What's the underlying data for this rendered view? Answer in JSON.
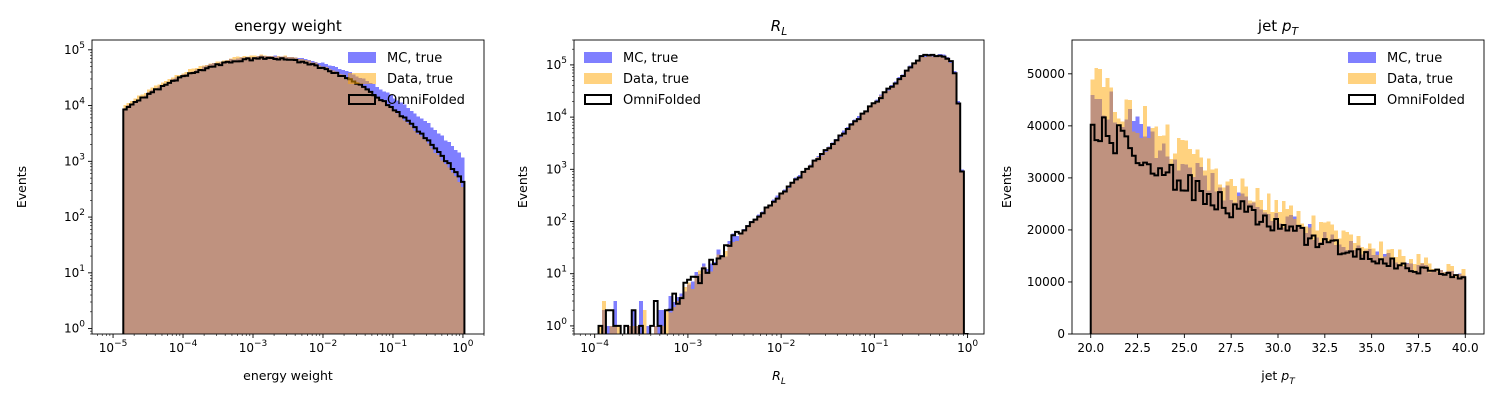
{
  "chart_data": [
    {
      "type": "histogram",
      "title": "energy weight",
      "xlabel": "energy weight",
      "ylabel": "Events",
      "xscale": "log",
      "yscale": "log",
      "xlim": [
        5e-06,
        2
      ],
      "ylim": [
        0.8,
        150000.0
      ],
      "xticks": [
        {
          "v": 1e-05,
          "b": "10",
          "e": "−5"
        },
        {
          "v": 0.0001,
          "b": "10",
          "e": "−4"
        },
        {
          "v": 0.001,
          "b": "10",
          "e": "−3"
        },
        {
          "v": 0.01,
          "b": "10",
          "e": "−2"
        },
        {
          "v": 0.1,
          "b": "10",
          "e": "−1"
        },
        {
          "v": 1,
          "b": "10",
          "e": "0"
        }
      ],
      "yticks": [
        {
          "v": 1,
          "b": "10",
          "e": "0"
        },
        {
          "v": 10,
          "b": "10",
          "e": "1"
        },
        {
          "v": 100,
          "b": "10",
          "e": "2"
        },
        {
          "v": 1000,
          "b": "10",
          "e": "3"
        },
        {
          "v": 10000,
          "b": "10",
          "e": "4"
        },
        {
          "v": 100000,
          "b": "10",
          "e": "5"
        }
      ],
      "legend_position": "top-right",
      "legend": [
        "MC, true",
        "Data, true",
        "OmniFolded"
      ],
      "range": [
        1.4e-05,
        1.05
      ],
      "nbins": 100,
      "series": [
        {
          "name": "MC, true",
          "shape": {
            "kind": "lognormal",
            "peak": 78000,
            "center": 0.0018,
            "sigmaL": 1.0,
            "sigmaR": 0.95
          },
          "noise": 0.04
        },
        {
          "name": "Data, true",
          "shape": {
            "kind": "lognormal",
            "peak": 80000,
            "center": 0.0016,
            "sigmaL": 1.0,
            "sigmaR": 0.85
          },
          "noise": 0.04
        },
        {
          "name": "OmniFolded",
          "shape": {
            "kind": "lognormal",
            "peak": 70000,
            "center": 0.0017,
            "sigmaL": 1.0,
            "sigmaR": 0.87
          },
          "noise": 0.05
        }
      ]
    },
    {
      "type": "histogram",
      "title": "R_L",
      "xlabel": "R_L",
      "ylabel": "Events",
      "xscale": "log",
      "yscale": "log",
      "xlim": [
        6e-05,
        1.5
      ],
      "ylim": [
        0.7,
        300000.0
      ],
      "xticks": [
        {
          "v": 0.0001,
          "b": "10",
          "e": "−4"
        },
        {
          "v": 0.001,
          "b": "10",
          "e": "−3"
        },
        {
          "v": 0.01,
          "b": "10",
          "e": "−2"
        },
        {
          "v": 0.1,
          "b": "10",
          "e": "−1"
        },
        {
          "v": 1,
          "b": "10",
          "e": "0"
        }
      ],
      "yticks": [
        {
          "v": 1,
          "b": "10",
          "e": "0"
        },
        {
          "v": 10,
          "b": "10",
          "e": "1"
        },
        {
          "v": 100,
          "b": "10",
          "e": "2"
        },
        {
          "v": 1000,
          "b": "10",
          "e": "3"
        },
        {
          "v": 10000,
          "b": "10",
          "e": "4"
        },
        {
          "v": 100000,
          "b": "10",
          "e": "5"
        }
      ],
      "legend_position": "top-left",
      "legend": [
        "MC, true",
        "Data, true",
        "OmniFolded"
      ],
      "range": [
        0.00011,
        1.0
      ],
      "nbins": 100,
      "series": [
        {
          "name": "MC, true",
          "shape": {
            "kind": "powerlaw",
            "peakX": 0.33,
            "peak": 160000,
            "slope": 1.75,
            "cut": 0.85
          },
          "noise": 0.05
        },
        {
          "name": "Data, true",
          "shape": {
            "kind": "powerlaw",
            "peakX": 0.33,
            "peak": 150000,
            "slope": 1.75,
            "cut": 0.85
          },
          "noise": 0.05
        },
        {
          "name": "OmniFolded",
          "shape": {
            "kind": "powerlaw",
            "peakX": 0.33,
            "peak": 150000,
            "slope": 1.75,
            "cut": 0.85
          },
          "noise": 0.06
        }
      ]
    },
    {
      "type": "histogram",
      "title": "jet p_T",
      "xlabel": "jet p_T",
      "ylabel": "Events",
      "xscale": "linear",
      "yscale": "linear",
      "xlim": [
        19.0,
        41.0
      ],
      "ylim": [
        0,
        56500
      ],
      "xticks": [
        {
          "v": 20.0,
          "t": "20.0"
        },
        {
          "v": 22.5,
          "t": "22.5"
        },
        {
          "v": 25.0,
          "t": "25.0"
        },
        {
          "v": 27.5,
          "t": "27.5"
        },
        {
          "v": 30.0,
          "t": "30.0"
        },
        {
          "v": 32.5,
          "t": "32.5"
        },
        {
          "v": 35.0,
          "t": "35.0"
        },
        {
          "v": 37.5,
          "t": "37.5"
        },
        {
          "v": 40.0,
          "t": "40.0"
        }
      ],
      "yticks": [
        {
          "v": 0,
          "t": "0"
        },
        {
          "v": 10000,
          "t": "10000"
        },
        {
          "v": 20000,
          "t": "20000"
        },
        {
          "v": 30000,
          "t": "30000"
        },
        {
          "v": 40000,
          "t": "40000"
        },
        {
          "v": 50000,
          "t": "50000"
        }
      ],
      "legend_position": "top-right",
      "legend": [
        "MC, true",
        "Data, true",
        "OmniFolded"
      ],
      "range": [
        20.0,
        40.0
      ],
      "nbins": 100,
      "series": [
        {
          "name": "MC, true",
          "shape": {
            "kind": "exp",
            "a": 47000,
            "b": 0.074
          },
          "noise": 0.08
        },
        {
          "name": "Data, true",
          "shape": {
            "kind": "exp",
            "a": 50000,
            "b": 0.072
          },
          "noise": 0.09
        },
        {
          "name": "OmniFolded",
          "shape": {
            "kind": "exp",
            "a": 41000,
            "b": 0.069
          },
          "noise": 0.09
        }
      ]
    }
  ],
  "colors": {
    "mc": "#0000ff",
    "data": "#ffa500",
    "omnifolded": "#000000",
    "overlap": "#bf9586"
  }
}
